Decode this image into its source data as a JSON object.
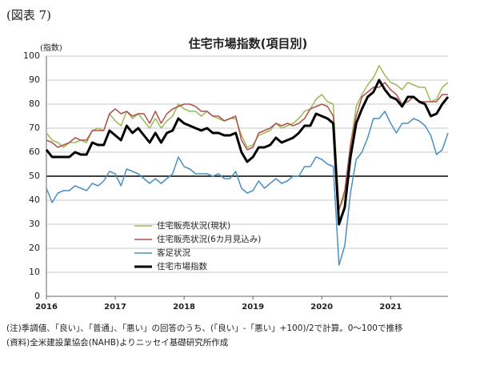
{
  "figure_label": "(図表 7)",
  "chart_data": {
    "type": "line",
    "title": "住宅市場指数(項目別)",
    "y_label": "(指数)",
    "categories": [
      "2016",
      null,
      null,
      null,
      null,
      null,
      null,
      null,
      null,
      null,
      null,
      null,
      "2017",
      null,
      null,
      null,
      null,
      null,
      null,
      null,
      null,
      null,
      null,
      null,
      "2018",
      null,
      null,
      null,
      null,
      null,
      null,
      null,
      null,
      null,
      null,
      null,
      "2019",
      null,
      null,
      null,
      null,
      null,
      null,
      null,
      null,
      null,
      null,
      null,
      "2020",
      null,
      null,
      null,
      null,
      null,
      null,
      null,
      null,
      null,
      null,
      null,
      "2021",
      null,
      null,
      null,
      null,
      null,
      null,
      null,
      null,
      null,
      null
    ],
    "series": [
      {
        "name": "住宅販売状況(現状)",
        "color": "#9bbb59",
        "width": 1.5,
        "values": [
          68,
          65,
          64,
          62,
          64,
          64,
          65,
          64,
          69,
          70,
          69,
          76,
          73,
          71,
          77,
          74,
          76,
          73,
          70,
          74,
          70,
          73,
          75,
          80,
          78,
          77,
          77,
          75,
          77,
          75,
          74,
          73,
          74,
          74,
          67,
          62,
          63,
          67,
          68,
          69,
          72,
          70,
          71,
          72,
          74,
          77,
          78,
          82,
          84,
          81,
          80,
          36,
          42,
          63,
          79,
          84,
          88,
          91,
          96,
          92,
          89,
          88,
          86,
          89,
          88,
          87,
          87,
          81,
          82,
          87,
          89
        ]
      },
      {
        "name": "住宅販売状況(6カ月見込み)",
        "color": "#b0524d",
        "width": 1.5,
        "values": [
          65,
          64,
          62,
          63,
          64,
          66,
          65,
          65,
          69,
          69,
          69,
          76,
          78,
          76,
          77,
          75,
          76,
          76,
          72,
          77,
          72,
          76,
          78,
          79,
          80,
          80,
          79,
          77,
          77,
          75,
          75,
          73,
          74,
          75,
          65,
          61,
          62,
          68,
          69,
          70,
          72,
          71,
          72,
          71,
          72,
          74,
          78,
          79,
          80,
          79,
          75,
          36,
          44,
          63,
          75,
          83,
          85,
          87,
          87,
          89,
          86,
          84,
          80,
          81,
          83,
          81,
          81,
          81,
          81,
          84,
          84
        ]
      },
      {
        "name": "客足状況",
        "color": "#4a90c4",
        "width": 1.5,
        "values": [
          45,
          39,
          43,
          44,
          44,
          46,
          45,
          44,
          47,
          46,
          48,
          52,
          51,
          46,
          53,
          52,
          51,
          49,
          47,
          49,
          47,
          49,
          51,
          58,
          54,
          53,
          51,
          51,
          51,
          50,
          51,
          49,
          49,
          52,
          45,
          43,
          44,
          48,
          45,
          47,
          49,
          47,
          48,
          50,
          50,
          54,
          54,
          58,
          57,
          55,
          54,
          13,
          21,
          43,
          57,
          60,
          66,
          74,
          74,
          77,
          72,
          68,
          72,
          72,
          74,
          73,
          71,
          67,
          59,
          61,
          68
        ]
      },
      {
        "name": "住宅市場指数",
        "color": "#000000",
        "width": 3,
        "values": [
          61,
          58,
          58,
          58,
          58,
          60,
          59,
          59,
          64,
          63,
          63,
          69,
          67,
          65,
          71,
          68,
          70,
          67,
          64,
          68,
          64,
          68,
          69,
          74,
          72,
          71,
          70,
          69,
          70,
          68,
          68,
          67,
          67,
          68,
          60,
          56,
          58,
          62,
          62,
          63,
          66,
          64,
          65,
          66,
          68,
          71,
          71,
          76,
          75,
          74,
          72,
          30,
          37,
          58,
          72,
          78,
          83,
          85,
          90,
          86,
          83,
          82,
          79,
          83,
          83,
          81,
          80,
          75,
          76,
          80,
          83
        ]
      }
    ],
    "ylim": [
      0,
      100
    ],
    "yticks": [
      0,
      10,
      20,
      30,
      40,
      50,
      60,
      70,
      80,
      90,
      100
    ],
    "grid": true,
    "reference_line": 50,
    "legend": "lower left"
  },
  "notes": [
    "(注)季調値、「良い」、「普通」、「悪い」の回答のうち、(「良い」-「悪い」+100)/2で計算。0～100で推移",
    "(資料)全米建設業協会(NAHB)よりニッセイ基礎研究所作成"
  ]
}
